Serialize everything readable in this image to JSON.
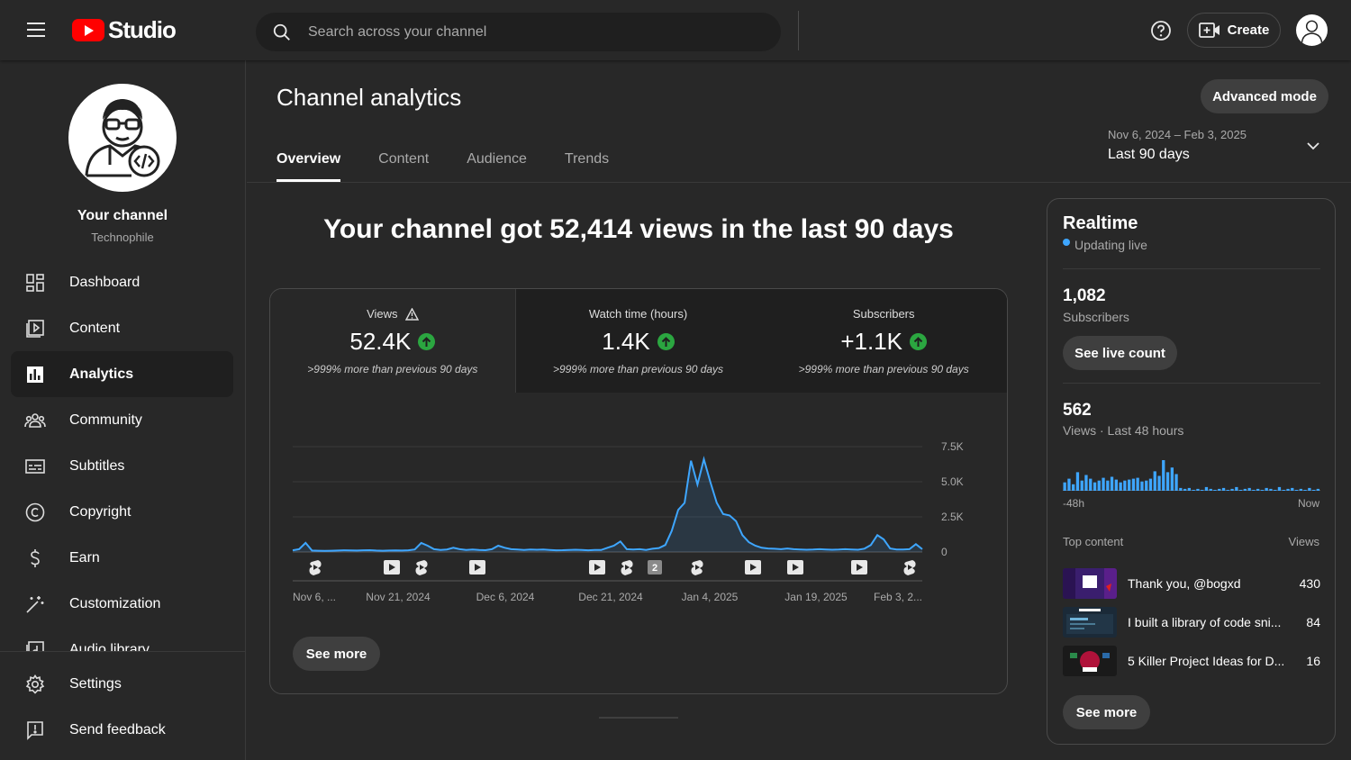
{
  "header": {
    "logo_text": "Studio",
    "search_placeholder": "Search across your channel",
    "create_label": "Create"
  },
  "sidebar": {
    "channel_title": "Your channel",
    "channel_handle": "Technophile",
    "items": [
      {
        "label": "Dashboard",
        "icon": "dashboard-icon"
      },
      {
        "label": "Content",
        "icon": "content-icon"
      },
      {
        "label": "Analytics",
        "icon": "analytics-icon",
        "active": true
      },
      {
        "label": "Community",
        "icon": "community-icon"
      },
      {
        "label": "Subtitles",
        "icon": "subtitles-icon"
      },
      {
        "label": "Copyright",
        "icon": "copyright-icon"
      },
      {
        "label": "Earn",
        "icon": "earn-icon"
      },
      {
        "label": "Customization",
        "icon": "customization-icon"
      },
      {
        "label": "Audio library",
        "icon": "audio-library-icon"
      }
    ],
    "bottom_items": [
      {
        "label": "Settings",
        "icon": "gear-icon"
      },
      {
        "label": "Send feedback",
        "icon": "feedback-icon"
      }
    ]
  },
  "main": {
    "title": "Channel analytics",
    "advanced_mode_label": "Advanced mode",
    "tabs": [
      "Overview",
      "Content",
      "Audience",
      "Trends"
    ],
    "date_range": {
      "dates": "Nov 6, 2024 – Feb 3, 2025",
      "label": "Last 90 days"
    },
    "headline": "Your channel got 52,414 views in the last 90 days",
    "metrics": [
      {
        "label": "Views",
        "value": "52.4K",
        "note": ">999% more than previous 90 days",
        "warning": true
      },
      {
        "label": "Watch time (hours)",
        "value": "1.4K",
        "note": ">999% more than previous 90 days"
      },
      {
        "label": "Subscribers",
        "value": "+1.1K",
        "note": ">999% more than previous 90 days"
      }
    ],
    "see_more_label": "See more"
  },
  "chart_data": {
    "type": "area",
    "x_labels": [
      "Nov 6, ...",
      "Nov 21, 2024",
      "Dec 6, 2024",
      "Dec 21, 2024",
      "Jan 4, 2025",
      "Jan 19, 2025",
      "Feb 3, 2..."
    ],
    "y_ticks": [
      "7.5K",
      "5.0K",
      "2.5K",
      "0"
    ],
    "ylim": [
      0,
      7500
    ],
    "values": [
      120,
      200,
      650,
      100,
      90,
      80,
      90,
      100,
      120,
      110,
      100,
      120,
      130,
      100,
      90,
      100,
      110,
      100,
      120,
      180,
      650,
      450,
      200,
      150,
      180,
      300,
      200,
      150,
      180,
      150,
      130,
      200,
      450,
      300,
      200,
      180,
      150,
      170,
      160,
      180,
      150,
      120,
      130,
      150,
      160,
      140,
      120,
      150,
      140,
      300,
      450,
      750,
      200,
      180,
      200,
      150,
      230,
      280,
      500,
      1500,
      3000,
      3500,
      6500,
      4800,
      6600,
      5000,
      3500,
      2700,
      2600,
      2200,
      1200,
      700,
      450,
      300,
      250,
      230,
      200,
      250,
      200,
      180,
      160,
      170,
      200,
      180,
      160,
      170,
      200,
      180,
      160,
      240,
      500,
      1200,
      900,
      250,
      180,
      170,
      200,
      560,
      200
    ],
    "markers": [
      "shorts",
      "video",
      "shorts",
      "video",
      "video",
      "shorts",
      "2",
      "shorts",
      "video",
      "video",
      "video",
      "shorts"
    ],
    "line_color": "#3ea6ff"
  },
  "realtime": {
    "title": "Realtime",
    "live_label": "Updating live",
    "subscribers_count": "1,082",
    "subscribers_label": "Subscribers",
    "see_live_count_label": "See live count",
    "views_count": "562",
    "views_label": "Views · Last 48 hours",
    "axis_start": "-48h",
    "axis_end": "Now",
    "bars": [
      9,
      13,
      7,
      20,
      11,
      17,
      13,
      9,
      11,
      14,
      11,
      15,
      12,
      9,
      11,
      12,
      13,
      14,
      10,
      11,
      13,
      21,
      16,
      33,
      20,
      25,
      18,
      3,
      2,
      3,
      1,
      2,
      1,
      4,
      2,
      1,
      2,
      3,
      1,
      2,
      4,
      1,
      2,
      3,
      1,
      2,
      1,
      3,
      2,
      1,
      4,
      1,
      2,
      3,
      1,
      2,
      1,
      3,
      1,
      2
    ],
    "top_content_label": "Top content",
    "views_col_label": "Views",
    "top_content": [
      {
        "title": "Thank you, @bogxd",
        "views": "430"
      },
      {
        "title": "I built a library of code sni...",
        "views": "84"
      },
      {
        "title": "5 Killer Project Ideas for D...",
        "views": "16"
      }
    ],
    "see_more_label": "See more"
  },
  "colors": {
    "accent": "#3ea6ff",
    "positive": "#2ba640",
    "brand_red": "#ff0000"
  }
}
